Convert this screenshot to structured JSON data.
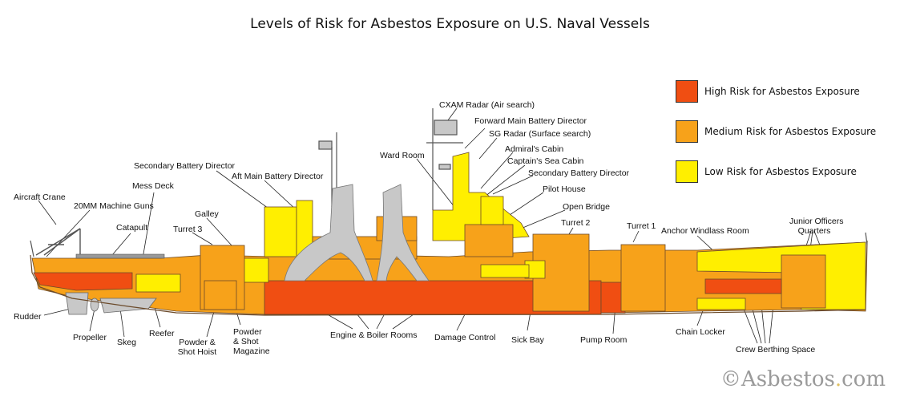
{
  "title": "Levels of Risk for Asbestos Exposure on U.S. Naval Vessels",
  "colors": {
    "high": "#f04e12",
    "medium": "#f7a21a",
    "low": "#ffef00",
    "structure": "#c8c8c8",
    "outline": "#6b4a2a"
  },
  "legend": [
    {
      "label": "High Risk  for Asbestos Exposure",
      "color": "#f04e12"
    },
    {
      "label": "Medium Risk for Asbestos Exposure",
      "color": "#f7a21a"
    },
    {
      "label": "Low Risk for Asbestos Exposure",
      "color": "#ffef00"
    }
  ],
  "labels": {
    "cxam_radar": "CXAM Radar (Air search)",
    "forward_main_battery_director": "Forward Main Battery Director",
    "sg_radar": "SG Radar (Surface search)",
    "admirals_cabin": "Admiral's Cabin",
    "captains_sea_cabin": "Captain's Sea Cabin",
    "secondary_battery_director_fwd": "Secondary Battery Director",
    "pilot_house": "Pilot House",
    "open_bridge": "Open Bridge",
    "ward_room": "Ward Room",
    "secondary_battery_director_aft": "Secondary Battery Director",
    "aft_main_battery_director": "Aft Main Battery Director",
    "mess_deck": "Mess Deck",
    "aircraft_crane": "Aircraft Crane",
    "machine_guns": "20MM Machine Guns",
    "galley": "Galley",
    "catapult": "Catapult",
    "turret3": "Turret 3",
    "turret2": "Turret 2",
    "turret1": "Turret 1",
    "anchor_windlass_room": "Anchor Windlass Room",
    "junior_officers_quarters_1": "Junior Officers",
    "junior_officers_quarters_2": "Quarters",
    "rudder": "Rudder",
    "propeller": "Propeller",
    "skeg": "Skeg",
    "reefer": "Reefer",
    "powder_shot_hoist_1": "Powder &",
    "powder_shot_hoist_2": "Shot Hoist",
    "powder_magazine_1": "Powder",
    "powder_magazine_2": "& Shot",
    "powder_magazine_3": "Magazine",
    "engine_boiler_rooms": "Engine & Boiler Rooms",
    "damage_control": "Damage Control",
    "sick_bay": "Sick  Bay",
    "pump_room": "Pump Room",
    "chain_locker": "Chain Locker",
    "crew_berthing_space": "Crew Berthing Space"
  },
  "credit": {
    "copyright": "©",
    "name": "Asbestos",
    "dot": ".",
    "tld": "com"
  }
}
